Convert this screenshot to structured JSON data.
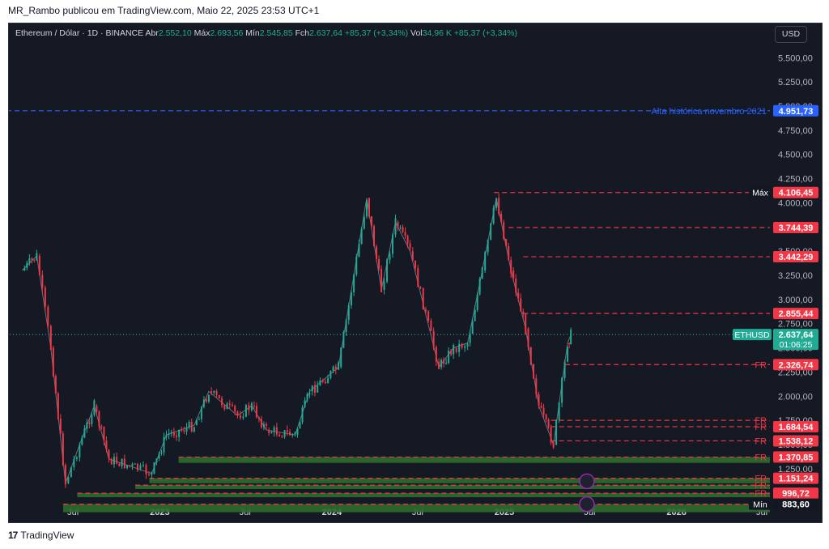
{
  "header": {
    "publisher_line": "MR_Rambo publicou em TradingView.com, Maio 22, 2025 23:53 UTC+1"
  },
  "legend": {
    "symbol": "Ethereum / Dólar · 1D · BINANCE",
    "open_label": "Abr",
    "open_value": "2.552,10",
    "high_label": "Máx",
    "high_value": "2.693,56",
    "low_label": "Mín",
    "low_value": "2.545,85",
    "close_label": "Fch",
    "close_value": "2.637,64",
    "change": "+85,37 (+3,34%)",
    "vol_label": "Vol",
    "vol_value": "34,96 K",
    "vol_change": "+85,37 (+3,34%)"
  },
  "currency_button": "USD",
  "footer": {
    "logo": "17",
    "brand": "TradingView"
  },
  "colors": {
    "background": "#151924",
    "up": "#22ab94",
    "down": "#f23645",
    "ath_line": "#2962ff",
    "zone": "#2e6b2e"
  },
  "chart_data": {
    "type": "candlestick",
    "symbol": "ETHUSD",
    "ylim": [
      800,
      5700
    ],
    "y_ticks": [
      "5.500,00",
      "5.250,00",
      "5.000,00",
      "4.750,00",
      "4.500,00",
      "4.250,00",
      "4.000,00",
      "3.750,00",
      "3.500,00",
      "3.250,00",
      "3.000,00",
      "2.750,00",
      "2.500,00",
      "2.250,00",
      "2.000,00",
      "1.750,00",
      "1.500,00",
      "1.250,00",
      "1.000,00"
    ],
    "x_ticks": [
      "Jul",
      "2023",
      "Jul",
      "2024",
      "Jul",
      "2025",
      "Jul",
      "2026",
      "Jul"
    ],
    "price_path": [
      {
        "date": "2022-03",
        "price": 3300
      },
      {
        "date": "2022-04",
        "price": 3450
      },
      {
        "date": "2022-05",
        "price": 2500
      },
      {
        "date": "2022-06",
        "price": 1100
      },
      {
        "date": "2022-07",
        "price": 1500
      },
      {
        "date": "2022-08",
        "price": 1900
      },
      {
        "date": "2022-09",
        "price": 1350
      },
      {
        "date": "2022-11",
        "price": 1250
      },
      {
        "date": "2022-12",
        "price": 1200
      },
      {
        "date": "2023-01",
        "price": 1600
      },
      {
        "date": "2023-03",
        "price": 1700
      },
      {
        "date": "2023-04",
        "price": 2050
      },
      {
        "date": "2023-06",
        "price": 1800
      },
      {
        "date": "2023-07",
        "price": 1900
      },
      {
        "date": "2023-08",
        "price": 1650
      },
      {
        "date": "2023-10",
        "price": 1600
      },
      {
        "date": "2023-11",
        "price": 2050
      },
      {
        "date": "2024-01",
        "price": 2300
      },
      {
        "date": "2024-03",
        "price": 4050
      },
      {
        "date": "2024-04",
        "price": 3100
      },
      {
        "date": "2024-05",
        "price": 3800
      },
      {
        "date": "2024-06",
        "price": 3500
      },
      {
        "date": "2024-08",
        "price": 2300
      },
      {
        "date": "2024-09",
        "price": 2500
      },
      {
        "date": "2024-10",
        "price": 2550
      },
      {
        "date": "2024-11",
        "price": 3300
      },
      {
        "date": "2024-12",
        "price": 4050
      },
      {
        "date": "2025-01",
        "price": 3300
      },
      {
        "date": "2025-02",
        "price": 2700
      },
      {
        "date": "2025-03",
        "price": 1900
      },
      {
        "date": "2025-04",
        "price": 1500
      },
      {
        "date": "2025-05",
        "price": 2550
      },
      {
        "date": "2025-05-22",
        "price": 2637.64
      }
    ],
    "levels": [
      {
        "label": "Alta histórica novembro 2021",
        "value": 4951.73,
        "tag": "4.951,73",
        "tag_color": "#2962ff",
        "line_color": "#2962ff",
        "start_date": "2022-02"
      },
      {
        "label": "Máx",
        "value": 4106.45,
        "tag": "4.106,45",
        "tag_color": "#f23645",
        "line_color": "#f23645",
        "start_date": "2024-12"
      },
      {
        "label": "",
        "value": 3744.39,
        "tag": "3.744,39",
        "tag_color": "#f23645",
        "line_color": "#f23645",
        "start_date": "2025-01"
      },
      {
        "label": "",
        "value": 3442.29,
        "tag": "3.442,29",
        "tag_color": "#f23645",
        "line_color": "#f23645",
        "start_date": "2025-02"
      },
      {
        "label": "",
        "value": 2855.44,
        "tag": "2.855,44",
        "tag_color": "#f23645",
        "line_color": "#f23645",
        "start_date": "2025-02"
      },
      {
        "label": "ETHUSD",
        "value": 2637.64,
        "tag": "2.637,64",
        "tag_sub": "01:06:25",
        "tag_color": "#22ab94",
        "line_color": "#22ab94",
        "start_date": "2022-02",
        "dotted": true
      },
      {
        "label": "FR",
        "value": 2326.74,
        "tag": "2.326,74",
        "tag_color": "#f23645",
        "line_color": "#f23645",
        "start_date": "2025-05"
      },
      {
        "label": "FR",
        "value": 1750.0,
        "tag": "",
        "tag_color": "#f23645",
        "line_color": "#f23645",
        "start_date": "2025-04"
      },
      {
        "label": "FR",
        "value": 1684.54,
        "tag": "1.684,54",
        "tag_color": "#f23645",
        "line_color": "#f23645",
        "start_date": "2025-04"
      },
      {
        "label": "FR",
        "value": 1538.12,
        "tag": "1.538,12",
        "tag_color": "#f23645",
        "line_color": "#f23645",
        "start_date": "2025-04"
      },
      {
        "label": "FR",
        "value": 1370.85,
        "tag": "1.370,85",
        "tag_color": "#f23645",
        "line_color": "#f23645",
        "start_date": "2023-02",
        "zone_low": 1310
      },
      {
        "label": "FR",
        "value": 1151.24,
        "tag": "1.151,24",
        "tag_color": "#f23645",
        "line_color": "#f23645",
        "start_date": "2022-12",
        "zone_low": 1100
      },
      {
        "label": "FR",
        "value": 1080.0,
        "tag": "",
        "tag_color": "#f23645",
        "line_color": "#f23645",
        "start_date": "2022-11",
        "zone_low": 1040
      },
      {
        "label": "FR",
        "value": 996.72,
        "tag": "996,72",
        "tag_color": "#f23645",
        "line_color": "#f23645",
        "start_date": "2022-07",
        "zone_low": 955
      },
      {
        "label": "Mín",
        "value": 883.6,
        "tag": "883,60",
        "tag_color": "#131722",
        "line_color": "#f23645",
        "start_date": "2022-06",
        "zone_low": 800
      }
    ],
    "markers": [
      {
        "icon": "lightning-icon",
        "date": "2025-06",
        "value": 1120
      },
      {
        "icon": "us-flag-icon",
        "date": "2025-06",
        "value": 883.6
      }
    ]
  }
}
